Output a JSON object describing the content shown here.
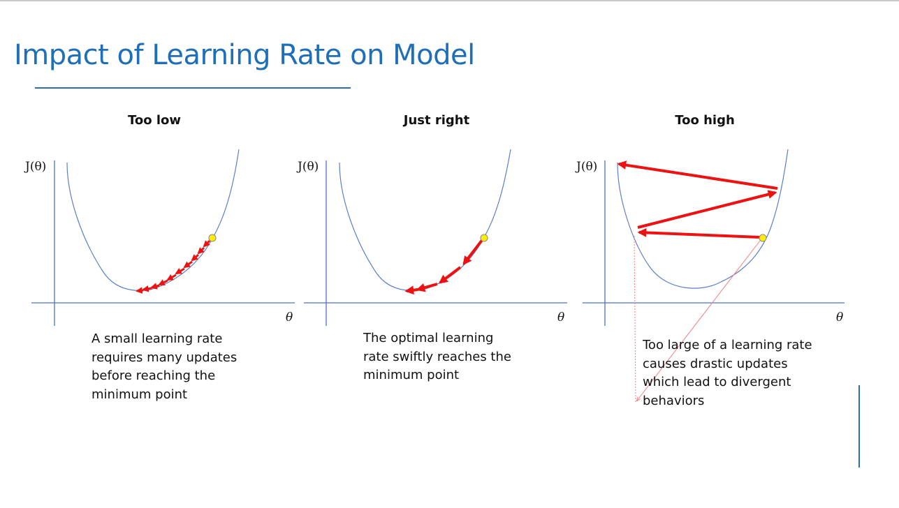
{
  "title": "Impact of Learning Rate on Model",
  "colors": {
    "title": "#1f6fb8",
    "axis": "#4a72c4",
    "curve": "#5b7fc7",
    "arrow": "#ee1111",
    "point": "#ffee00"
  },
  "axes": {
    "ylabel": "J(θ)",
    "xlabel": "θ"
  },
  "panels": [
    {
      "title": "Too low",
      "caption": [
        "A small learning rate",
        "requires many updates",
        "before reaching the",
        "minimum point"
      ]
    },
    {
      "title": "Just right",
      "caption": [
        "The optimal learning",
        "rate swiftly reaches the",
        "minimum point"
      ]
    },
    {
      "title": "Too high",
      "caption": [
        "Too large of a learning rate",
        "causes drastic updates",
        "which lead to divergent",
        "behaviors"
      ]
    }
  ]
}
